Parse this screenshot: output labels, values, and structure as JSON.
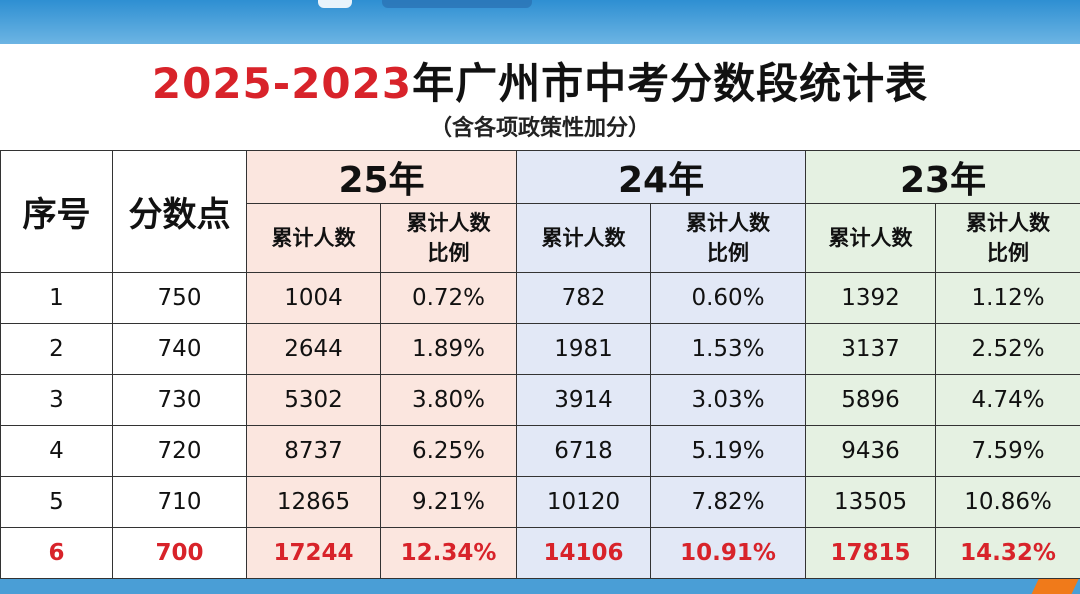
{
  "title": {
    "part1": "2025-2023",
    "part2": "年广州市中考分数段统计表"
  },
  "subtitle": "（含各项政策性加分）",
  "headers": {
    "index": "序号",
    "score": "分数点",
    "years": [
      "25年",
      "24年",
      "23年"
    ],
    "count": "累计人数",
    "ratio_line1": "累计人数",
    "ratio_line2": "比例"
  },
  "rows": [
    {
      "idx": "1",
      "score": "750",
      "c25": "1004",
      "r25": "0.72%",
      "c24": "782",
      "r24": "0.60%",
      "c23": "1392",
      "r23": "1.12%"
    },
    {
      "idx": "2",
      "score": "740",
      "c25": "2644",
      "r25": "1.89%",
      "c24": "1981",
      "r24": "1.53%",
      "c23": "3137",
      "r23": "2.52%"
    },
    {
      "idx": "3",
      "score": "730",
      "c25": "5302",
      "r25": "3.80%",
      "c24": "3914",
      "r24": "3.03%",
      "c23": "5896",
      "r23": "4.74%"
    },
    {
      "idx": "4",
      "score": "720",
      "c25": "8737",
      "r25": "6.25%",
      "c24": "6718",
      "r24": "5.19%",
      "c23": "9436",
      "r23": "7.59%"
    },
    {
      "idx": "5",
      "score": "710",
      "c25": "12865",
      "r25": "9.21%",
      "c24": "10120",
      "r24": "7.82%",
      "c23": "13505",
      "r23": "10.86%"
    },
    {
      "idx": "6",
      "score": "700",
      "c25": "17244",
      "r25": "12.34%",
      "c24": "14106",
      "r24": "10.91%",
      "c23": "17815",
      "r23": "14.32%"
    }
  ],
  "colors": {
    "highlight": "#d8232a",
    "year25": "#fbe6df",
    "year24": "#e2e8f6",
    "year23": "#e5f1e2"
  }
}
